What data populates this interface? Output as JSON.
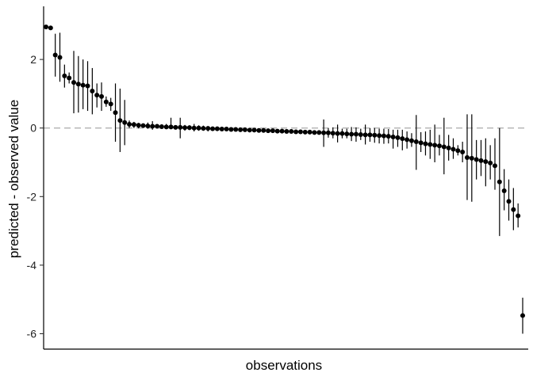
{
  "chart_data": {
    "type": "scatter",
    "title": "",
    "xlabel": "observations",
    "ylabel": "predicted - observed value",
    "ylim": [
      -6.45,
      3.55
    ],
    "yticks": [
      2,
      0,
      -2,
      -4,
      -6
    ],
    "ytick_labels": [
      "2",
      "0",
      "-2",
      "-4",
      "-6"
    ],
    "grid": false,
    "reference_line": {
      "y": 0,
      "style": "dashed",
      "color": "#aaaaaa"
    },
    "point_color": "#000000",
    "series": [
      {
        "values": [
          2.95,
          2.92,
          2.13,
          2.06,
          1.52,
          1.46,
          1.33,
          1.28,
          1.25,
          1.23,
          1.08,
          0.96,
          0.92,
          0.76,
          0.7,
          0.45,
          0.22,
          0.16,
          0.11,
          0.1,
          0.08,
          0.07,
          0.06,
          0.05,
          0.05,
          0.04,
          0.03,
          0.03,
          0.02,
          0.02,
          0.01,
          0.01,
          0.0,
          0.0,
          -0.01,
          -0.01,
          -0.02,
          -0.02,
          -0.03,
          -0.03,
          -0.04,
          -0.04,
          -0.05,
          -0.05,
          -0.06,
          -0.06,
          -0.07,
          -0.07,
          -0.08,
          -0.08,
          -0.09,
          -0.09,
          -0.1,
          -0.1,
          -0.11,
          -0.11,
          -0.12,
          -0.12,
          -0.13,
          -0.13,
          -0.14,
          -0.14,
          -0.15,
          -0.16,
          -0.16,
          -0.17,
          -0.18,
          -0.18,
          -0.19,
          -0.2,
          -0.2,
          -0.21,
          -0.22,
          -0.23,
          -0.24,
          -0.26,
          -0.28,
          -0.31,
          -0.34,
          -0.37,
          -0.4,
          -0.43,
          -0.46,
          -0.48,
          -0.5,
          -0.52,
          -0.55,
          -0.58,
          -0.62,
          -0.66,
          -0.7,
          -0.86,
          -0.88,
          -0.92,
          -0.95,
          -0.98,
          -1.02,
          -1.1,
          -1.57,
          -1.83,
          -2.14,
          -2.38,
          -2.56,
          -5.47
        ],
        "lower": [
          2.95,
          2.92,
          1.5,
          1.35,
          1.18,
          1.3,
          0.43,
          0.45,
          0.55,
          0.5,
          0.4,
          0.6,
          0.5,
          0.62,
          0.5,
          -0.4,
          -0.7,
          -0.5,
          0.0,
          0.0,
          -0.01,
          0.0,
          -0.02,
          -0.05,
          0.0,
          -0.02,
          -0.03,
          -0.03,
          -0.01,
          -0.3,
          -0.08,
          -0.06,
          -0.1,
          -0.08,
          -0.08,
          -0.1,
          -0.08,
          -0.09,
          -0.09,
          -0.09,
          -0.09,
          -0.09,
          -0.1,
          -0.1,
          -0.11,
          -0.11,
          -0.11,
          -0.12,
          -0.12,
          -0.12,
          -0.13,
          -0.13,
          -0.14,
          -0.14,
          -0.15,
          -0.15,
          -0.15,
          -0.16,
          -0.17,
          -0.18,
          -0.55,
          -0.28,
          -0.3,
          -0.42,
          -0.3,
          -0.3,
          -0.38,
          -0.4,
          -0.35,
          -0.48,
          -0.4,
          -0.43,
          -0.45,
          -0.46,
          -0.45,
          -0.6,
          -0.55,
          -0.65,
          -0.6,
          -0.55,
          -1.22,
          -0.7,
          -0.8,
          -0.9,
          -1.0,
          -0.8,
          -1.35,
          -0.95,
          -0.9,
          -0.8,
          -1.0,
          -2.1,
          -2.15,
          -1.5,
          -1.4,
          -1.7,
          -1.5,
          -1.8,
          -3.15,
          -2.4,
          -2.7,
          -2.98,
          -2.9,
          -6.0
        ],
        "upper": [
          2.95,
          2.92,
          2.75,
          2.78,
          1.85,
          1.62,
          2.25,
          2.1,
          2.0,
          1.95,
          1.75,
          1.3,
          1.33,
          0.92,
          0.88,
          1.3,
          1.15,
          0.82,
          0.22,
          0.18,
          0.15,
          0.13,
          0.16,
          0.2,
          0.1,
          0.1,
          0.12,
          0.3,
          0.07,
          0.3,
          0.09,
          0.08,
          0.12,
          0.08,
          0.07,
          0.05,
          0.04,
          0.04,
          0.03,
          0.03,
          0.02,
          0.02,
          0.01,
          0.01,
          0.0,
          -0.01,
          -0.02,
          -0.02,
          -0.04,
          -0.04,
          -0.05,
          -0.05,
          -0.06,
          -0.06,
          -0.07,
          -0.07,
          -0.08,
          -0.08,
          -0.09,
          -0.08,
          0.25,
          0.0,
          0.02,
          0.1,
          -0.02,
          -0.02,
          0.03,
          0.02,
          -0.02,
          0.1,
          0.0,
          0.0,
          -0.02,
          -0.02,
          -0.03,
          -0.05,
          -0.05,
          -0.05,
          -0.1,
          -0.15,
          0.38,
          -0.12,
          -0.1,
          -0.05,
          0.1,
          -0.2,
          0.3,
          -0.2,
          -0.3,
          -0.5,
          -0.4,
          0.4,
          0.4,
          -0.35,
          -0.35,
          -0.3,
          -0.5,
          -0.3,
          0.0,
          -1.2,
          -1.5,
          -1.75,
          -2.2,
          -4.95
        ]
      }
    ]
  }
}
